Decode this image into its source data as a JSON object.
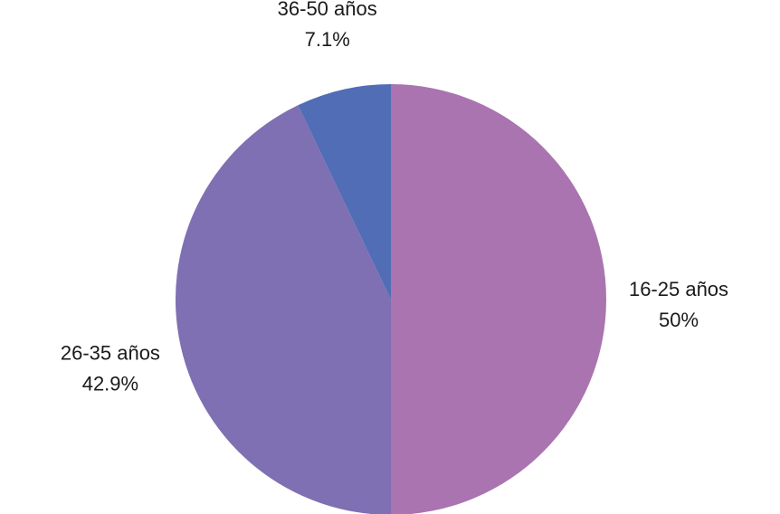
{
  "chart_data": {
    "type": "pie",
    "title": "",
    "start_angle_deg": 0,
    "direction": "clockwise",
    "slices": [
      {
        "label": "16-25 años",
        "value": 50.0,
        "value_label": "50%",
        "color": "#a974b0"
      },
      {
        "label": "26-35 años",
        "value": 42.9,
        "value_label": "42.9%",
        "color": "#7f6fb3"
      },
      {
        "label": "36-50 años",
        "value": 7.1,
        "value_label": "7.1%",
        "color": "#516db5"
      }
    ],
    "legend": "none",
    "data_labels": "outside"
  }
}
